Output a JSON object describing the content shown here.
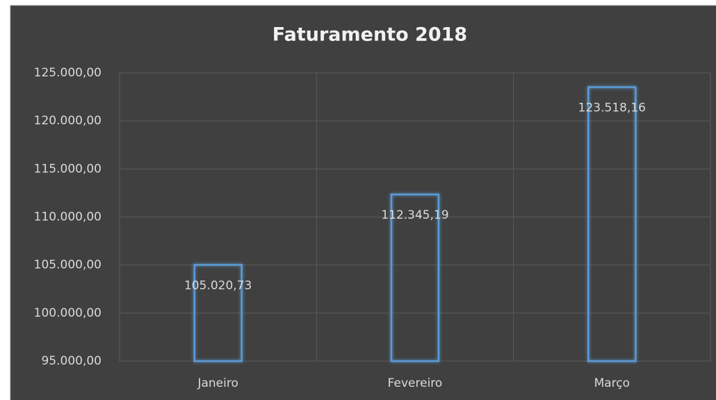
{
  "chart_data": {
    "type": "bar",
    "title": "Faturamento 2018",
    "categories": [
      "Janeiro",
      "Fevereiro",
      "Março"
    ],
    "values": [
      105020.73,
      112345.19,
      123518.16
    ],
    "value_labels": [
      "105.020,73",
      "112.345,19",
      "123.518,16"
    ],
    "color": "#5b9bd5",
    "ylim": [
      95000,
      125000
    ],
    "yticks": [
      {
        "value": 95000,
        "label": "95.000,00"
      },
      {
        "value": 100000,
        "label": "100.000,00"
      },
      {
        "value": 105000,
        "label": "105.000,00"
      },
      {
        "value": 110000,
        "label": "110.000,00"
      },
      {
        "value": 115000,
        "label": "115.000,00"
      },
      {
        "value": 120000,
        "label": "120.000,00"
      },
      {
        "value": 125000,
        "label": "125.000,00"
      }
    ],
    "grid": true
  }
}
